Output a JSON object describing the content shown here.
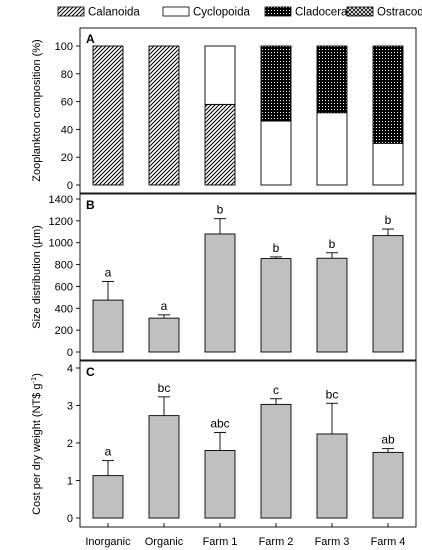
{
  "legend": [
    {
      "label": "Calanoida",
      "pattern": "diag"
    },
    {
      "label": "Cyclopoida",
      "pattern": "white"
    },
    {
      "label": "Cladocera",
      "pattern": "dots"
    },
    {
      "label": "Ostracoda",
      "pattern": "cross"
    }
  ],
  "colors": {
    "bar_fill": "#c0c0c0",
    "axis": "#000000",
    "stack_white": "#ffffff"
  },
  "chart_data": [
    {
      "type": "bar",
      "stacked": true,
      "panel": "A",
      "ylabel": "Zooplankton composition (%)",
      "ylim": [
        0,
        100
      ],
      "yticks": [
        0,
        20,
        40,
        60,
        80,
        100
      ],
      "categories": [
        "Inorganic",
        "Organic",
        "Farm 1",
        "Farm 2",
        "Farm 3",
        "Farm 4"
      ],
      "series": [
        {
          "name": "Calanoida",
          "values": [
            100,
            100,
            58,
            0,
            0,
            0
          ]
        },
        {
          "name": "Cyclopoida",
          "values": [
            0,
            0,
            42,
            46,
            52,
            30
          ]
        },
        {
          "name": "Cladocera",
          "values": [
            0,
            0,
            0,
            54,
            48,
            70
          ]
        },
        {
          "name": "Ostracoda",
          "values": [
            0,
            0,
            0,
            0,
            0,
            0
          ]
        }
      ]
    },
    {
      "type": "bar",
      "panel": "B",
      "ylabel": "Size distribution (µm)",
      "ylim": [
        0,
        1400
      ],
      "yticks": [
        0,
        200,
        400,
        600,
        800,
        1000,
        1200,
        1400
      ],
      "categories": [
        "Inorganic",
        "Organic",
        "Farm 1",
        "Farm 2",
        "Farm 3",
        "Farm 4"
      ],
      "values": [
        475,
        310,
        1080,
        855,
        858,
        1065
      ],
      "errors": [
        170,
        30,
        140,
        15,
        50,
        60
      ],
      "letters": [
        "a",
        "a",
        "b",
        "b",
        "b",
        "b"
      ]
    },
    {
      "type": "bar",
      "panel": "C",
      "ylabel": "Cost per dry weight (NT$ g",
      "ylabel_sup": "-1",
      "ylabel_end": ")",
      "ylim": [
        0,
        4
      ],
      "yticks": [
        0,
        1,
        2,
        3,
        4
      ],
      "categories": [
        "Inorganic",
        "Organic",
        "Farm 1",
        "Farm 2",
        "Farm 3",
        "Farm 4"
      ],
      "values": [
        1.13,
        2.73,
        1.8,
        3.03,
        2.24,
        1.75
      ],
      "errors": [
        0.4,
        0.5,
        0.48,
        0.15,
        0.82,
        0.1
      ],
      "letters": [
        "a",
        "bc",
        "abc",
        "c",
        "bc",
        "ab"
      ]
    }
  ]
}
